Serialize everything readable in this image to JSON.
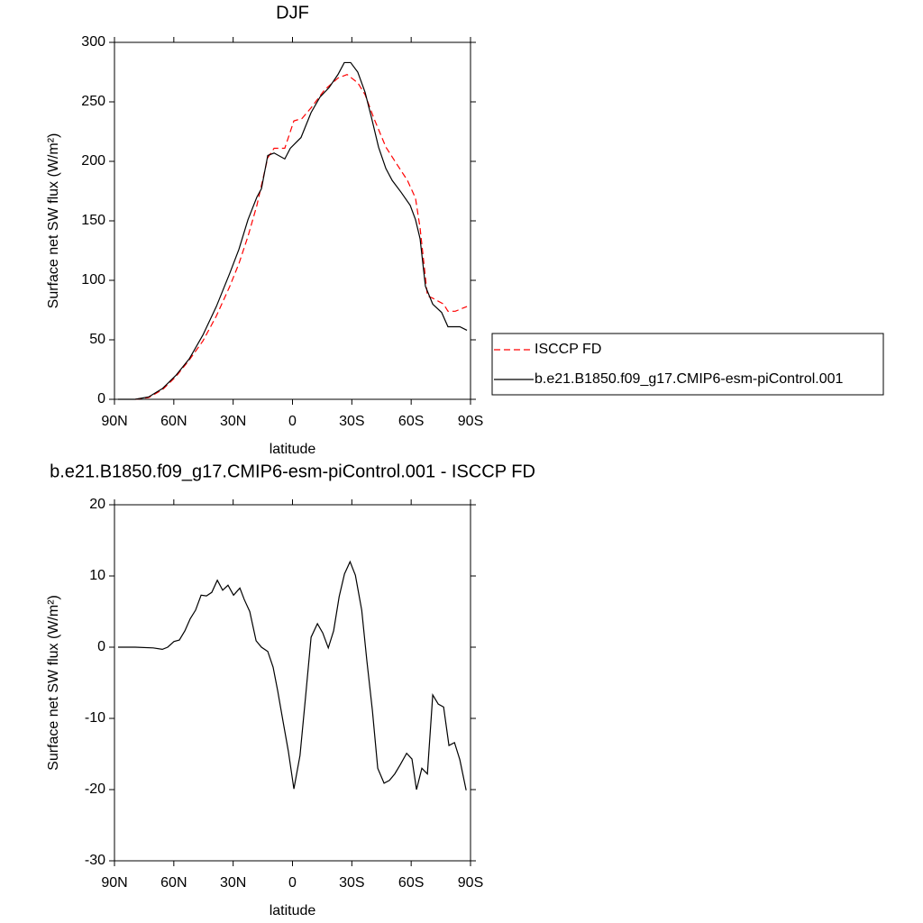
{
  "chart_data": [
    {
      "type": "line",
      "title": "DJF",
      "xlabel": "latitude",
      "ylabel": "Surface net SW flux (W/m²)",
      "xlim": [
        90,
        -90
      ],
      "ylim": [
        0,
        300
      ],
      "xticks": [
        {
          "value": 90,
          "label": "90N"
        },
        {
          "value": 60,
          "label": "60N"
        },
        {
          "value": 30,
          "label": "30N"
        },
        0,
        {
          "value": -30,
          "label": "30S"
        },
        {
          "value": -60,
          "label": "60S"
        },
        {
          "value": -90,
          "label": "90S"
        }
      ],
      "yticks": [
        0,
        50,
        100,
        150,
        200,
        250,
        300
      ],
      "legend": "outside-right",
      "series": [
        {
          "name": "ISCCP FD",
          "color": "#ff0000",
          "linestyle": "dashed",
          "x": [
            79.5,
            72.7,
            65.8,
            59,
            52.2,
            45.3,
            38.5,
            31.7,
            27.1,
            22.5,
            18,
            12.5,
            9.3,
            3.9,
            -0.7,
            -4.8,
            -9.4,
            -16.2,
            -23,
            -27.6,
            -33,
            -36.7,
            -41.2,
            -47.2,
            -52.6,
            -58.1,
            -62.2,
            -64.5,
            -68.2,
            -70.9,
            -76.4,
            -78.6,
            -82.3,
            -88.2
          ],
          "values": [
            0,
            1.5,
            8,
            19,
            33,
            49,
            70,
            95,
            114,
            137,
            163,
            203,
            211,
            211,
            234,
            236,
            245,
            260,
            270,
            273,
            266,
            256,
            236,
            212,
            198,
            184,
            169,
            144,
            87,
            85,
            80,
            74,
            74,
            78
          ]
        },
        {
          "name": "b.e21.B1850.f09_g17.CMIP6-esm-piControl.001",
          "color": "#000000",
          "linestyle": "solid",
          "x": [
            88.2,
            79.5,
            72.7,
            65.8,
            59,
            52.2,
            45.3,
            38.5,
            31.7,
            27.1,
            22.5,
            18,
            15.7,
            12.5,
            9.3,
            3.9,
            1.1,
            -4.3,
            -9.4,
            -13.9,
            -18.5,
            -23,
            -26.2,
            -29.4,
            -33,
            -36.7,
            -39.9,
            -43.5,
            -47.2,
            -50.4,
            -54.9,
            -59.5,
            -62.2,
            -64.5,
            -67.2,
            -70.9,
            -75.4,
            -78.6,
            -84.6,
            -88.2
          ],
          "values": [
            0,
            0,
            2,
            9,
            20,
            34,
            54,
            78,
            106,
            126,
            151,
            170,
            177,
            205,
            207,
            202,
            211,
            220,
            241,
            254,
            262,
            273,
            283,
            283,
            275,
            258,
            237,
            212,
            194,
            184,
            174,
            163,
            151,
            135,
            95,
            80,
            73,
            61,
            61,
            58
          ]
        }
      ]
    },
    {
      "type": "line",
      "title": "b.e21.B1850.f09_g17.CMIP6-esm-piControl.001 - ISCCP FD",
      "xlabel": "latitude",
      "ylabel": "Surface net SW flux (W/m²)",
      "xlim": [
        90,
        -90
      ],
      "ylim": [
        -30,
        20
      ],
      "xticks": [
        {
          "value": 90,
          "label": "90N"
        },
        {
          "value": 60,
          "label": "60N"
        },
        {
          "value": 30,
          "label": "30N"
        },
        0,
        {
          "value": -30,
          "label": "30S"
        },
        {
          "value": -60,
          "label": "60S"
        },
        {
          "value": -90,
          "label": "90S"
        }
      ],
      "yticks": [
        -30,
        -20,
        -10,
        0,
        10,
        20
      ],
      "series": [
        {
          "color": "#000000",
          "linestyle": "solid",
          "x": [
            88.2,
            79.5,
            70.4,
            65.8,
            63.1,
            59.9,
            57.2,
            54.4,
            51.7,
            49,
            46.2,
            43.5,
            40.8,
            38,
            35.3,
            32.6,
            29.8,
            26.6,
            24.4,
            21.6,
            18.4,
            15.7,
            12.5,
            9.8,
            7.5,
            4.8,
            2.1,
            -0.7,
            -3.8,
            -6.6,
            -9.4,
            -12.6,
            -15.3,
            -18.1,
            -20.8,
            -23.6,
            -26.3,
            -29.1,
            -31.8,
            -35,
            -37.6,
            -40.4,
            -43.1,
            -46.3,
            -49,
            -51.7,
            -54.5,
            -57.7,
            -60.4,
            -62.7,
            -65.4,
            -68.2,
            -70.9,
            -73.7,
            -76.4,
            -79.1,
            -81.9,
            -84.6,
            -87.8
          ],
          "values": [
            0,
            0,
            -0.1,
            -0.3,
            0,
            0.8,
            1,
            2.3,
            4,
            5.2,
            7.3,
            7.2,
            7.7,
            9.4,
            8,
            8.7,
            7.3,
            8.3,
            6.7,
            5,
            0.9,
            0,
            -0.6,
            -2.8,
            -6.1,
            -10.4,
            -14.6,
            -19.9,
            -15.2,
            -7,
            1.4,
            3.3,
            2,
            -0.1,
            2.3,
            7.1,
            10.3,
            12,
            10.1,
            5.2,
            -1.9,
            -8.9,
            -17,
            -19.1,
            -18.7,
            -17.8,
            -16.5,
            -14.9,
            -15.7,
            -20,
            -17,
            -17.8,
            -6.7,
            -8,
            -8.4,
            -13.8,
            -13.4,
            -15.8,
            -20.1
          ]
        }
      ]
    }
  ]
}
